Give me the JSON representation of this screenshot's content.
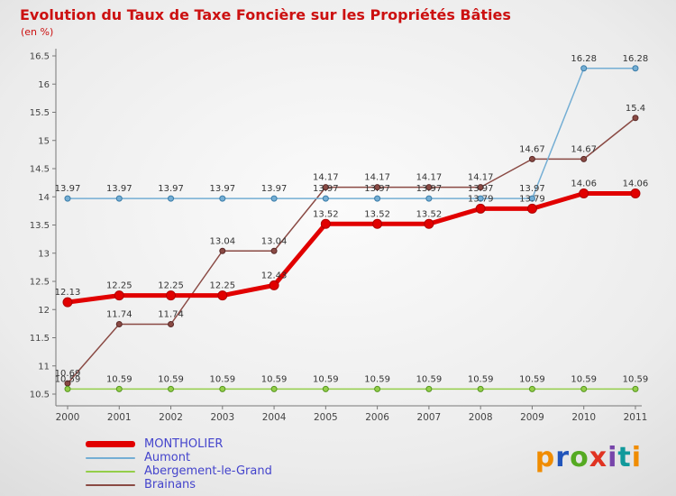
{
  "header": {
    "title": "Evolution du Taux de Taxe Foncière sur les Propriétés Bâties",
    "subtitle": "(en %)"
  },
  "chart_data": {
    "type": "line",
    "categories": [
      "2000",
      "2001",
      "2002",
      "2003",
      "2004",
      "2005",
      "2006",
      "2007",
      "2008",
      "2009",
      "2010",
      "2011"
    ],
    "ylim": [
      10.5,
      16.5
    ],
    "ytick_step": 0.5,
    "grid": false,
    "legend_position": "bottom-left",
    "axis_color": "#777777",
    "tick_label_color": "#444444",
    "data_label_color": "#333333",
    "series": [
      {
        "name": "MONTHOLIER",
        "color": "#e10000",
        "width": 5,
        "marker": 5,
        "marker_stroke": "#b00000",
        "values": [
          12.13,
          12.25,
          12.25,
          12.25,
          12.43,
          13.52,
          13.52,
          13.52,
          13.79,
          13.79,
          14.06,
          14.06
        ]
      },
      {
        "name": "Aumont",
        "color": "#74aed4",
        "width": 1.5,
        "marker": 3,
        "marker_stroke": "#3a7ca8",
        "values": [
          13.97,
          13.97,
          13.97,
          13.97,
          13.97,
          13.97,
          13.97,
          13.97,
          13.97,
          13.97,
          16.28,
          16.28
        ]
      },
      {
        "name": "Abergement-le-Grand",
        "color": "#94ce4a",
        "width": 1.5,
        "marker": 3,
        "marker_stroke": "#55961e",
        "values": [
          10.59,
          10.59,
          10.59,
          10.59,
          10.59,
          10.59,
          10.59,
          10.59,
          10.59,
          10.59,
          10.59,
          10.59
        ]
      },
      {
        "name": "Brainans",
        "color": "#8a4a44",
        "width": 1.5,
        "marker": 3,
        "marker_stroke": "#5a2a28",
        "values": [
          10.69,
          11.74,
          11.74,
          13.04,
          13.04,
          14.17,
          14.17,
          14.17,
          14.17,
          14.67,
          14.67,
          15.4
        ]
      }
    ]
  },
  "legend": {
    "items": [
      {
        "label": "MONTHOLIER",
        "color": "#e10000",
        "thick": true
      },
      {
        "label": "Aumont",
        "color": "#74aed4",
        "thick": false
      },
      {
        "label": "Abergement-le-Grand",
        "color": "#94ce4a",
        "thick": false
      },
      {
        "label": "Brainans",
        "color": "#8a4a44",
        "thick": false
      }
    ],
    "label_color": "#4444cc"
  },
  "logo": {
    "letters": [
      {
        "ch": "p",
        "color": "#f08c00"
      },
      {
        "ch": "r",
        "color": "#2255bb"
      },
      {
        "ch": "o",
        "color": "#55aa22"
      },
      {
        "ch": "x",
        "color": "#e03322"
      },
      {
        "ch": "i",
        "color": "#7744aa"
      },
      {
        "ch": "t",
        "color": "#11999b"
      },
      {
        "ch": "i",
        "color": "#f08c00"
      }
    ]
  }
}
